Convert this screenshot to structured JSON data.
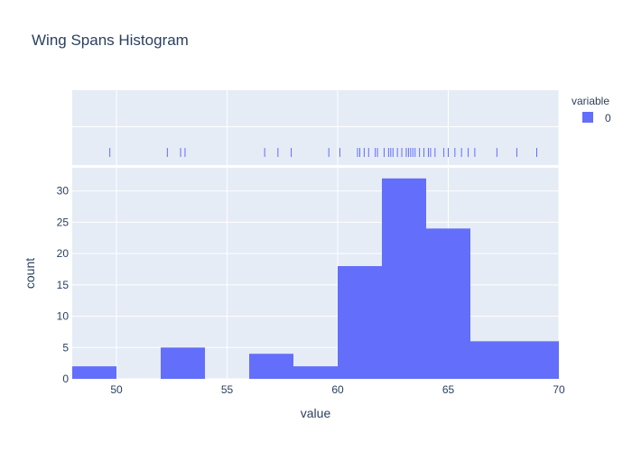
{
  "chart_data": {
    "type": "histogram",
    "title": "Wing Spans Histogram",
    "xlabel": "value",
    "ylabel": "count",
    "xlim": [
      48,
      70
    ],
    "ylim": [
      0,
      33.7
    ],
    "x_ticks": [
      50,
      55,
      60,
      65,
      70
    ],
    "y_ticks": [
      0,
      5,
      10,
      15,
      20,
      25,
      30
    ],
    "bar_color": "#636efa",
    "plot_bg": "#e5ecf6",
    "grid": true,
    "legend": {
      "title": "variable",
      "placement": "top-right",
      "entries": [
        "0"
      ]
    },
    "bins": [
      {
        "start": 48,
        "end": 50,
        "count": 2
      },
      {
        "start": 50,
        "end": 52,
        "count": 0
      },
      {
        "start": 52,
        "end": 54,
        "count": 5
      },
      {
        "start": 54,
        "end": 56,
        "count": 0
      },
      {
        "start": 56,
        "end": 58,
        "count": 4
      },
      {
        "start": 58,
        "end": 60,
        "count": 2
      },
      {
        "start": 60,
        "end": 62,
        "count": 18
      },
      {
        "start": 62,
        "end": 64,
        "count": 32
      },
      {
        "start": 64,
        "end": 66,
        "count": 24
      },
      {
        "start": 66,
        "end": 70,
        "count": 6
      }
    ],
    "rug_values": [
      49.7,
      52.3,
      52.9,
      53.1,
      56.7,
      57.3,
      57.9,
      59.6,
      60.1,
      60.9,
      61.0,
      61.2,
      61.4,
      61.7,
      61.8,
      62.1,
      62.3,
      62.4,
      62.5,
      62.7,
      62.9,
      63.1,
      63.2,
      63.3,
      63.4,
      63.5,
      63.7,
      63.9,
      64.1,
      64.2,
      64.4,
      64.8,
      65.0,
      65.3,
      65.6,
      65.9,
      66.2,
      67.2,
      68.1,
      69.0
    ]
  }
}
